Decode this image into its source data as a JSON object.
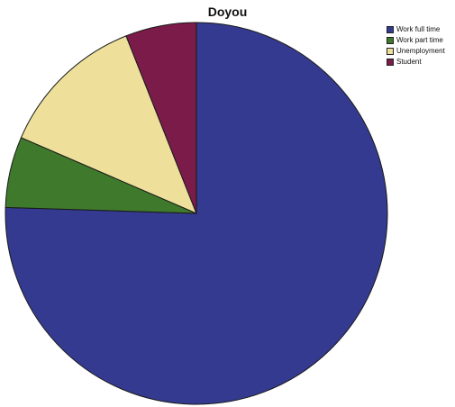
{
  "chart_data": {
    "type": "pie",
    "title": "Doyou",
    "legend_position": "top-right",
    "slices": [
      {
        "label": "Work full time",
        "value": 75.5,
        "color": "#343a8f"
      },
      {
        "label": "Work part time",
        "value": 6.0,
        "color": "#3f7a2c"
      },
      {
        "label": "Unemployment",
        "value": 12.5,
        "color": "#eedf9b"
      },
      {
        "label": "Student",
        "value": 6.0,
        "color": "#7a1b4a"
      }
    ]
  }
}
